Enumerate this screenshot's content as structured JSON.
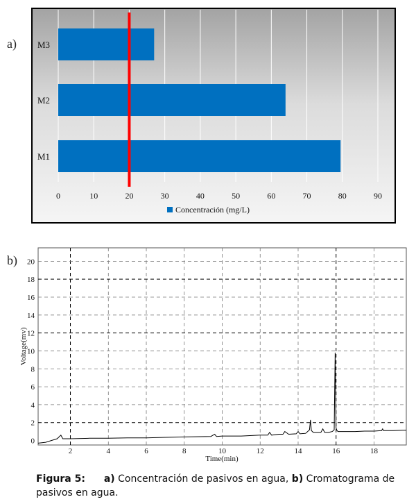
{
  "panel_labels": {
    "a": "a)",
    "b": "b)"
  },
  "caption": {
    "figure": "Figura 5:",
    "a_mark": "a)",
    "a_text": " Concentración de pasivos en agua, ",
    "b_mark": "b)",
    "b_text": " Cromatograma de pasivos en agua."
  },
  "chart_data": [
    {
      "type": "bar",
      "orientation": "horizontal",
      "categories": [
        "M3",
        "M2",
        "M1"
      ],
      "series": [
        {
          "name": "Concentración (mg/L)",
          "values": [
            27,
            64,
            79.5
          ]
        }
      ],
      "xlim": [
        0,
        90
      ],
      "x_ticks": [
        0,
        10,
        20,
        30,
        40,
        50,
        60,
        70,
        80,
        90
      ],
      "reference_line": {
        "x": 20,
        "color": "#ff0000"
      },
      "bar_color": "#0070c0",
      "grid": true,
      "legend": "bottom"
    },
    {
      "type": "line",
      "xlabel": "Time(min)",
      "ylabel": "Voltage(mv)",
      "xlim": [
        0.3,
        19.7
      ],
      "ylim": [
        -0.5,
        21.5
      ],
      "x_ticks": [
        2,
        4,
        6,
        8,
        10,
        12,
        14,
        16,
        18
      ],
      "y_ticks": [
        0,
        2,
        4,
        6,
        8,
        10,
        12,
        14,
        16,
        18,
        20
      ],
      "grid": true,
      "line_color": "#000000",
      "x": [
        0.3,
        0.7,
        1.3,
        1.5,
        1.6,
        2.0,
        3.0,
        4.0,
        5.0,
        6.0,
        7.0,
        8.0,
        9.4,
        9.6,
        9.7,
        10.0,
        11.0,
        12.0,
        12.4,
        12.5,
        12.6,
        13.0,
        13.2,
        13.3,
        13.5,
        13.9,
        14.0,
        14.1,
        14.4,
        14.6,
        14.65,
        14.7,
        14.8,
        15.0,
        15.2,
        15.3,
        15.4,
        15.6,
        15.8,
        15.9,
        15.95,
        16.0,
        16.05,
        16.1,
        16.5,
        17.0,
        17.5,
        18.0,
        18.4,
        18.45,
        18.5,
        19.0,
        19.5,
        19.7
      ],
      "y": [
        -0.3,
        -0.2,
        0.2,
        0.6,
        0.2,
        0.2,
        0.25,
        0.25,
        0.3,
        0.3,
        0.35,
        0.4,
        0.45,
        0.7,
        0.45,
        0.5,
        0.5,
        0.6,
        0.6,
        0.9,
        0.6,
        0.7,
        0.7,
        1.0,
        0.7,
        0.75,
        1.0,
        0.75,
        0.8,
        1.2,
        2.3,
        1.1,
        0.9,
        0.9,
        0.9,
        1.3,
        0.9,
        0.9,
        1.0,
        1.2,
        9.8,
        1.4,
        1.1,
        1.0,
        1.0,
        1.0,
        1.05,
        1.05,
        1.1,
        1.3,
        1.1,
        1.1,
        1.15,
        1.15
      ]
    }
  ]
}
